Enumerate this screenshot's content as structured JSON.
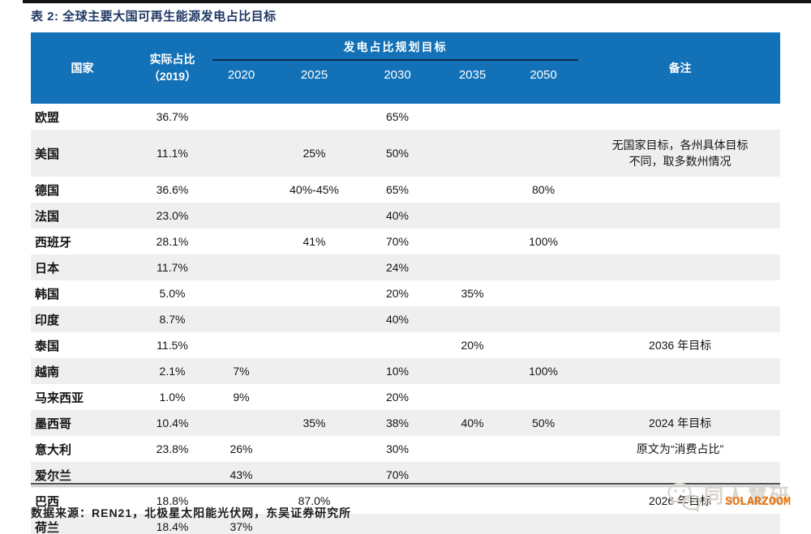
{
  "title": "表 2: 全球主要大国可再生能源发电占比目标",
  "table": {
    "header": {
      "country": "国家",
      "actual_line1": "实际占比",
      "actual_line2": "（2019）",
      "group": "发电占比规划目标",
      "years": [
        "2020",
        "2025",
        "2030",
        "2035",
        "2050"
      ],
      "notes": "备注"
    },
    "rows": [
      {
        "country": "欧盟",
        "actual": "36.7%",
        "y2020": "",
        "y2025": "",
        "y2030": "65%",
        "y2035": "",
        "y2050": "",
        "note": ""
      },
      {
        "country": "美国",
        "actual": "11.1%",
        "y2020": "",
        "y2025": "25%",
        "y2030": "50%",
        "y2035": "",
        "y2050": "",
        "note": "无国家目标，各州具体目标\n不同，取多数州情况"
      },
      {
        "country": "德国",
        "actual": "36.6%",
        "y2020": "",
        "y2025": "40%-45%",
        "y2030": "65%",
        "y2035": "",
        "y2050": "80%",
        "note": ""
      },
      {
        "country": "法国",
        "actual": "23.0%",
        "y2020": "",
        "y2025": "",
        "y2030": "40%",
        "y2035": "",
        "y2050": "",
        "note": ""
      },
      {
        "country": "西班牙",
        "actual": "28.1%",
        "y2020": "",
        "y2025": "41%",
        "y2030": "70%",
        "y2035": "",
        "y2050": "100%",
        "note": ""
      },
      {
        "country": "日本",
        "actual": "11.7%",
        "y2020": "",
        "y2025": "",
        "y2030": "24%",
        "y2035": "",
        "y2050": "",
        "note": ""
      },
      {
        "country": "韩国",
        "actual": "5.0%",
        "y2020": "",
        "y2025": "",
        "y2030": "20%",
        "y2035": "35%",
        "y2050": "",
        "note": ""
      },
      {
        "country": "印度",
        "actual": "8.7%",
        "y2020": "",
        "y2025": "",
        "y2030": "40%",
        "y2035": "",
        "y2050": "",
        "note": ""
      },
      {
        "country": "泰国",
        "actual": "11.5%",
        "y2020": "",
        "y2025": "",
        "y2030": "",
        "y2035": "20%",
        "y2050": "",
        "note": "2036 年目标"
      },
      {
        "country": "越南",
        "actual": "2.1%",
        "y2020": "7%",
        "y2025": "",
        "y2030": "10%",
        "y2035": "",
        "y2050": "100%",
        "note": ""
      },
      {
        "country": "马来西亚",
        "actual": "1.0%",
        "y2020": "9%",
        "y2025": "",
        "y2030": "20%",
        "y2035": "",
        "y2050": "",
        "note": ""
      },
      {
        "country": "墨西哥",
        "actual": "10.4%",
        "y2020": "",
        "y2025": "35%",
        "y2030": "38%",
        "y2035": "40%",
        "y2050": "50%",
        "note": "2024 年目标"
      },
      {
        "country": "意大利",
        "actual": "23.8%",
        "y2020": "26%",
        "y2025": "",
        "y2030": "30%",
        "y2035": "",
        "y2050": "",
        "note": "原文为“消费占比”"
      },
      {
        "country": "爱尔兰",
        "actual": "",
        "y2020": "43%",
        "y2025": "",
        "y2030": "70%",
        "y2035": "",
        "y2050": "",
        "note": ""
      },
      {
        "country": "巴西",
        "actual": "18.8%",
        "y2020": "",
        "y2025": "87.0%",
        "y2030": "",
        "y2035": "",
        "y2050": "",
        "note": "2026 年目标"
      },
      {
        "country": "荷兰",
        "actual": "18.4%",
        "y2020": "37%",
        "y2025": "",
        "y2030": "",
        "y2035": "",
        "y2050": "",
        "note": ""
      }
    ]
  },
  "footer": {
    "source": "数据来源：REN21，北极星太阳能光伏网，东吴证券研究所"
  },
  "watermark": {
    "brand": "同人慧研",
    "logo_text": "SOLARZOOM",
    "icon": "wechat-chat-bubbles-icon"
  },
  "colors": {
    "header_bg": "#1271b7",
    "header_text": "#ffffff",
    "title_text": "#1f3864",
    "stripe_bg": "#efefef",
    "group_underline": "#0d2b4c",
    "solarzoom_orange": "#e8730f",
    "watermark_gray": "#d9d5cd",
    "top_rule": "#141414"
  }
}
